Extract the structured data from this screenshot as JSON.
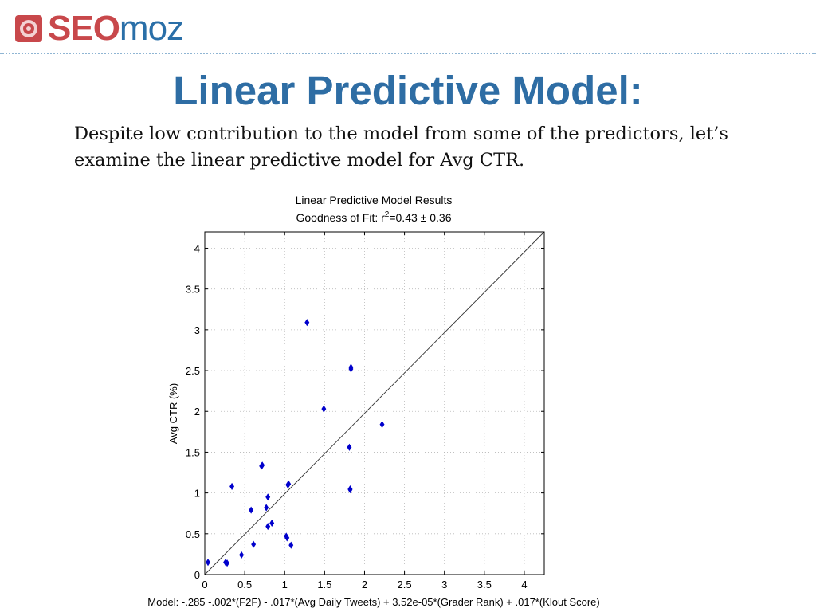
{
  "logo": {
    "seo": "SEO",
    "moz": "moz",
    "icon": "seomoz-gear-icon"
  },
  "slide": {
    "title": "Linear Predictive Model:",
    "intro_line1": "Despite low contribution to the model from some of the predictors, let’s",
    "intro_line2": "examine the linear predictive model for Avg CTR."
  },
  "colors": {
    "title": "#2e6da4",
    "seo": "#c8484b",
    "moz": "#2a6fa8",
    "points": "#0000cc",
    "divider": "#8fb5d3"
  },
  "chart_data": {
    "type": "scatter",
    "title": "Linear Predictive Model Results",
    "subtitle_prefix": "Goodness of Fit: r",
    "subtitle_sup": "2",
    "subtitle_suffix": "=0.43 ± 0.36",
    "xlabel": "",
    "ylabel": "Avg CTR (%)",
    "caption": "Model: -.285 -.002*(F2F) - .017*(Avg Daily Tweets) + 3.52e-05*(Grader Rank) + .017*(Klout Score)",
    "xlim": [
      0,
      4.25
    ],
    "ylim": [
      0,
      4.2
    ],
    "xticks": [
      0,
      0.5,
      1,
      1.5,
      2,
      2.5,
      3,
      3.5,
      4
    ],
    "yticks": [
      0,
      0.5,
      1,
      1.5,
      2,
      2.5,
      3,
      3.5,
      4
    ],
    "xtick_labels": [
      "0",
      "0.5",
      "1",
      "1.5",
      "2",
      "2.5",
      "3",
      "3.5",
      "4"
    ],
    "ytick_labels": [
      "0",
      "0.5",
      "1",
      "1.5",
      "2",
      "2.5",
      "3",
      "3.5",
      "4"
    ],
    "grid": true,
    "reference_line": {
      "from": [
        0,
        0
      ],
      "to": [
        4.25,
        4.2
      ]
    },
    "points": [
      {
        "x": 0.04,
        "y": 0.15
      },
      {
        "x": 0.26,
        "y": 0.15
      },
      {
        "x": 0.28,
        "y": 0.14
      },
      {
        "x": 0.34,
        "y": 1.08
      },
      {
        "x": 0.46,
        "y": 0.24
      },
      {
        "x": 0.58,
        "y": 0.79
      },
      {
        "x": 0.61,
        "y": 0.37
      },
      {
        "x": 0.71,
        "y": 1.33
      },
      {
        "x": 0.72,
        "y": 1.34
      },
      {
        "x": 0.77,
        "y": 0.82
      },
      {
        "x": 0.79,
        "y": 0.95
      },
      {
        "x": 0.79,
        "y": 0.59
      },
      {
        "x": 0.84,
        "y": 0.63
      },
      {
        "x": 1.02,
        "y": 0.47
      },
      {
        "x": 1.03,
        "y": 0.45
      },
      {
        "x": 1.04,
        "y": 1.1
      },
      {
        "x": 1.05,
        "y": 1.11
      },
      {
        "x": 1.08,
        "y": 0.36
      },
      {
        "x": 1.28,
        "y": 3.09
      },
      {
        "x": 1.49,
        "y": 2.03
      },
      {
        "x": 1.81,
        "y": 1.56
      },
      {
        "x": 1.82,
        "y": 1.04
      },
      {
        "x": 1.82,
        "y": 1.05
      },
      {
        "x": 1.83,
        "y": 2.52
      },
      {
        "x": 1.83,
        "y": 2.54
      },
      {
        "x": 2.22,
        "y": 1.84
      }
    ]
  }
}
